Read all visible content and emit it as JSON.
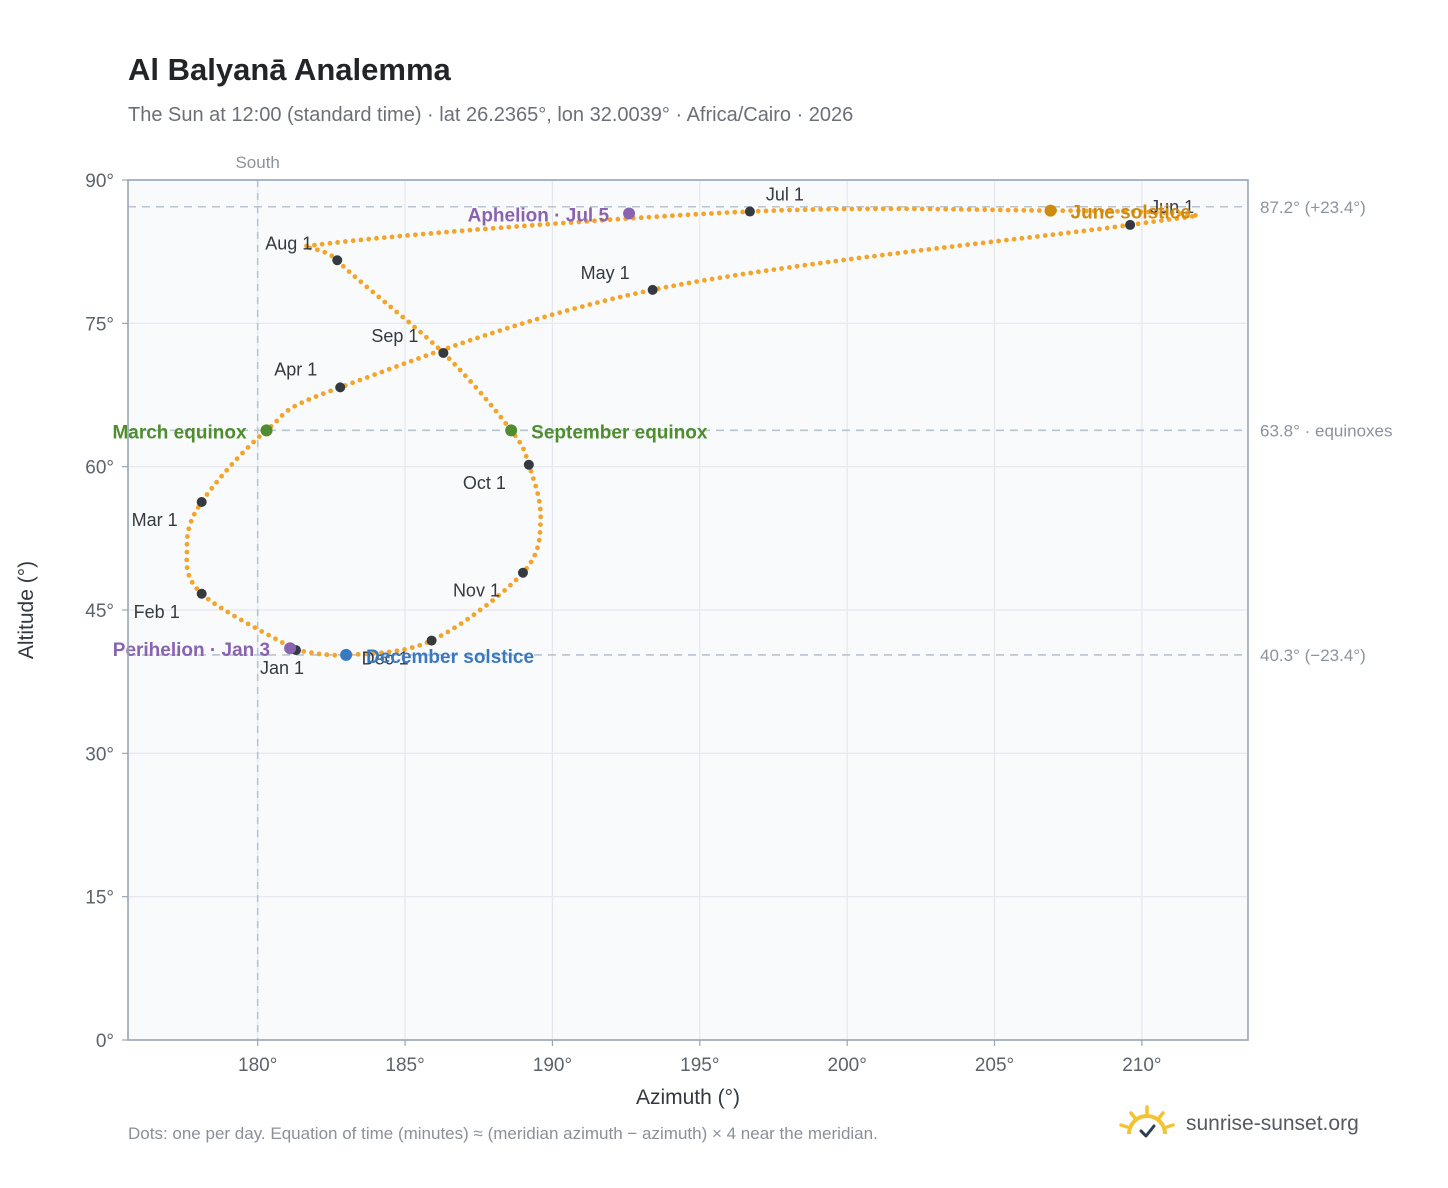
{
  "header": {
    "title": "Al Balyanā Analemma",
    "subtitle": "The Sun at 12:00 (standard time) · lat 26.2365°, lon 32.0039° · Africa/Cairo · 2026"
  },
  "footer": {
    "note": "Dots: one per day. Equation of time (minutes) ≈ (meridian azimuth − azimuth) × 4 near the meridian.",
    "brand": "sunrise-sunset.org",
    "brand_icon": "sun-logo-icon"
  },
  "colors": {
    "curve": "#f2a52b",
    "month_marker": "#343a40",
    "equinox": "#4f8d2e",
    "june_solstice": "#d08a10",
    "december_solstice": "#3a78c0",
    "apsis": "#8a63b0",
    "reference_line": "#b8c4d0",
    "plot_background": "#f8fafc",
    "grid": "#e4e8ee",
    "axis_frame": "#9aa6b4"
  },
  "chart_data": {
    "type": "scatter",
    "title": "Al Balyanā Analemma",
    "xlabel": "Azimuth (°)",
    "ylabel": "Altitude (°)",
    "xlim": [
      175.6,
      213.6
    ],
    "ylim": [
      0,
      90
    ],
    "grid": true,
    "x_ticks": [
      "180°",
      "185°",
      "190°",
      "195°",
      "200°",
      "205°",
      "210°"
    ],
    "y_ticks": [
      "0°",
      "15°",
      "30°",
      "45°",
      "60°",
      "75°",
      "90°"
    ],
    "meridian": {
      "azimuth": 180,
      "label": "South"
    },
    "reference_lines": [
      {
        "altitude": 87.2,
        "label": "87.2° (+23.4°)"
      },
      {
        "altitude": 63.8,
        "label": "63.8° · equinoxes"
      },
      {
        "altitude": 40.3,
        "label": "40.3° (−23.4°)"
      }
    ],
    "month_markers": [
      {
        "label": "Jan 1",
        "az": 181.3,
        "alt": 40.8
      },
      {
        "label": "Feb 1",
        "az": 178.1,
        "alt": 46.7
      },
      {
        "label": "Mar 1",
        "az": 178.1,
        "alt": 56.3
      },
      {
        "label": "Apr 1",
        "az": 182.8,
        "alt": 68.3
      },
      {
        "label": "May 1",
        "az": 193.4,
        "alt": 78.5
      },
      {
        "label": "Jun 1",
        "az": 209.6,
        "alt": 85.3
      },
      {
        "label": "Jul 1",
        "az": 196.7,
        "alt": 86.7
      },
      {
        "label": "Aug 1",
        "az": 182.7,
        "alt": 81.6
      },
      {
        "label": "Sep 1",
        "az": 186.3,
        "alt": 71.9
      },
      {
        "label": "Oct 1",
        "az": 189.2,
        "alt": 60.2
      },
      {
        "label": "Nov 1",
        "az": 189.0,
        "alt": 48.9
      },
      {
        "label": "Dec 1",
        "az": 185.9,
        "alt": 41.8
      }
    ],
    "events": [
      {
        "label": "March equinox",
        "az": 180.3,
        "alt": 63.8
      },
      {
        "label": "September equinox",
        "az": 188.6,
        "alt": 63.8
      },
      {
        "label": "June solstice",
        "az": 206.9,
        "alt": 86.8
      },
      {
        "label": "December solstice",
        "az": 183.0,
        "alt": 40.3
      },
      {
        "label": "Aphelion · Jul 5",
        "az": 192.6,
        "alt": 86.5
      },
      {
        "label": "Perihelion · Jan 3",
        "az": 181.1,
        "alt": 41.0
      }
    ],
    "daily_path": {
      "points_per_year": 365,
      "anchors": [
        {
          "az": 181.3,
          "alt": 40.8
        },
        {
          "az": 178.1,
          "alt": 46.7
        },
        {
          "az": 177.6,
          "alt": 51.5
        },
        {
          "az": 178.1,
          "alt": 56.3
        },
        {
          "az": 180.3,
          "alt": 63.8
        },
        {
          "az": 182.8,
          "alt": 68.3
        },
        {
          "az": 193.4,
          "alt": 78.5
        },
        {
          "az": 209.6,
          "alt": 85.3
        },
        {
          "az": 211.5,
          "alt": 86.4
        },
        {
          "az": 206.9,
          "alt": 86.8
        },
        {
          "az": 196.7,
          "alt": 86.7
        },
        {
          "az": 182.8,
          "alt": 83.5
        },
        {
          "az": 182.7,
          "alt": 81.6
        },
        {
          "az": 186.3,
          "alt": 71.9
        },
        {
          "az": 188.6,
          "alt": 63.8
        },
        {
          "az": 189.2,
          "alt": 60.2
        },
        {
          "az": 189.6,
          "alt": 54.5
        },
        {
          "az": 189.0,
          "alt": 48.9
        },
        {
          "az": 185.9,
          "alt": 41.8
        },
        {
          "az": 183.0,
          "alt": 40.3
        },
        {
          "az": 181.3,
          "alt": 40.8
        }
      ]
    }
  }
}
